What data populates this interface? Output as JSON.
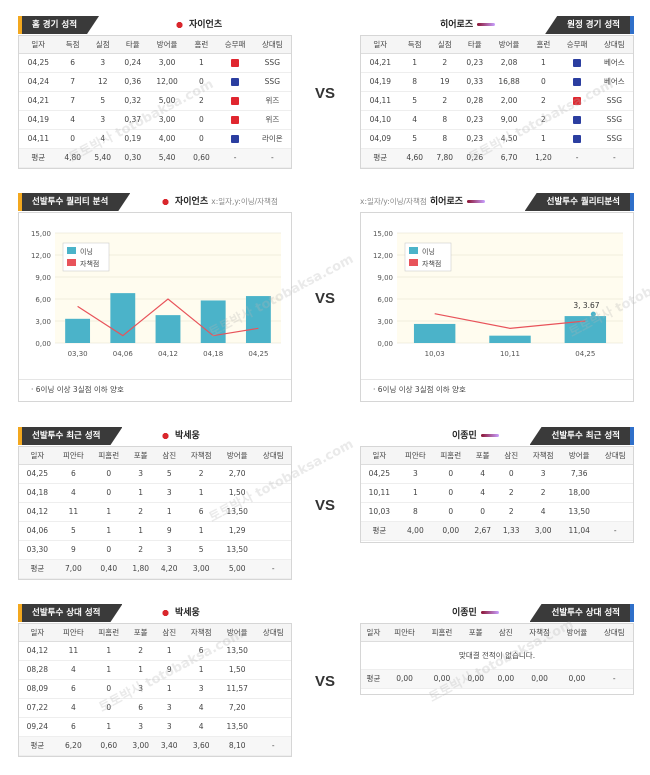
{
  "colors": {
    "bar": "#4bb3c9",
    "line": "#e8535a",
    "tab_bg": "#3a3a3a",
    "left_accent": "#f3a81f",
    "right_accent": "#2f6fc9"
  },
  "vs": "VS",
  "watermark": "토토박사 totobaksa.com",
  "section1": {
    "left": {
      "tab": "홈 경기 성적",
      "team": "자이언츠",
      "headers": [
        "일자",
        "득점",
        "실점",
        "타율",
        "방어율",
        "홈런",
        "승무패",
        "상대팀"
      ],
      "rows": [
        [
          "04,25",
          "6",
          "3",
          "0,24",
          "3,00",
          "1",
          "L",
          "SSG"
        ],
        [
          "04,24",
          "7",
          "12",
          "0,36",
          "12,00",
          "0",
          "W",
          "SSG"
        ],
        [
          "04,21",
          "7",
          "5",
          "0,32",
          "5,00",
          "2",
          "L",
          "위즈"
        ],
        [
          "04,19",
          "4",
          "3",
          "0,37",
          "3,00",
          "0",
          "L",
          "위즈"
        ],
        [
          "04,11",
          "0",
          "4",
          "0,19",
          "4,00",
          "0",
          "W",
          "라이온"
        ]
      ],
      "avg": [
        "평균",
        "4,80",
        "5,40",
        "0,30",
        "5,40",
        "0,60",
        "-",
        "-"
      ]
    },
    "right": {
      "tab": "원정 경기 성적",
      "team": "히어로즈",
      "headers": [
        "일자",
        "득점",
        "실점",
        "타율",
        "방어율",
        "홈런",
        "승무패",
        "상대팀"
      ],
      "rows": [
        [
          "04,21",
          "1",
          "2",
          "0,23",
          "2,08",
          "1",
          "W",
          "베어스"
        ],
        [
          "04,19",
          "8",
          "19",
          "0,33",
          "16,88",
          "0",
          "W",
          "베어스"
        ],
        [
          "04,11",
          "5",
          "2",
          "0,28",
          "2,00",
          "2",
          "L",
          "SSG"
        ],
        [
          "04,10",
          "4",
          "8",
          "0,23",
          "9,00",
          "2",
          "W",
          "SSG"
        ],
        [
          "04,09",
          "5",
          "8",
          "0,23",
          "4,50",
          "1",
          "W",
          "SSG"
        ]
      ],
      "avg": [
        "평균",
        "4,60",
        "7,80",
        "0,26",
        "6,70",
        "1,20",
        "-",
        "-"
      ]
    }
  },
  "section2": {
    "left": {
      "tab": "선발투수 퀄리티 분석",
      "team": "자이언츠",
      "hint": "x:일자,y:이닝/자책점",
      "note": "6이닝 이상 3실점 이하 양호"
    },
    "right": {
      "tab": "선발투수 퀄리티분석",
      "team": "히어로즈",
      "hint": "x:일자/y:이닝/자책점",
      "note": "6이닝 이상 3실점 이하 양호"
    }
  },
  "chart_data": [
    {
      "type": "bar",
      "categories": [
        "03,30",
        "04,06",
        "04,12",
        "04,18",
        "04,25"
      ],
      "series": [
        {
          "name": "이닝",
          "values": [
            3.3,
            6.8,
            3.8,
            5.8,
            6.4
          ]
        },
        {
          "name": "자책점",
          "values": [
            5,
            1,
            6,
            1,
            2
          ]
        }
      ],
      "yticks": [
        "0,00",
        "3,00",
        "6,00",
        "9,00",
        "12,00",
        "15,00"
      ],
      "ylim": [
        0,
        15
      ],
      "legend": "top-left"
    },
    {
      "type": "bar",
      "categories": [
        "10,03",
        "10,11",
        "04,25"
      ],
      "series": [
        {
          "name": "이닝",
          "values": [
            2.6,
            1,
            3.67
          ]
        },
        {
          "name": "자책점",
          "values": [
            4,
            2,
            3
          ]
        }
      ],
      "yticks": [
        "0,00",
        "3,00",
        "6,00",
        "9,00",
        "12,00",
        "15,00"
      ],
      "ylim": [
        0,
        15
      ],
      "legend": "top-left",
      "annotation": "3, 3.67"
    }
  ],
  "section3": {
    "left": {
      "tab": "선발투수 최근 성적",
      "team": "박세웅",
      "headers": [
        "일자",
        "피안타",
        "피홈런",
        "포볼",
        "삼진",
        "자책점",
        "방어율",
        "상대팀"
      ],
      "rows": [
        [
          "04,25",
          "6",
          "0",
          "3",
          "5",
          "2",
          "2,70",
          ""
        ],
        [
          "04,18",
          "4",
          "0",
          "1",
          "3",
          "1",
          "1,50",
          ""
        ],
        [
          "04,12",
          "11",
          "1",
          "2",
          "1",
          "6",
          "13,50",
          ""
        ],
        [
          "04,06",
          "5",
          "1",
          "1",
          "9",
          "1",
          "1,29",
          ""
        ],
        [
          "03,30",
          "9",
          "0",
          "2",
          "3",
          "5",
          "13,50",
          ""
        ]
      ],
      "avg": [
        "평균",
        "7,00",
        "0,40",
        "1,80",
        "4,20",
        "3,00",
        "5,00",
        "-"
      ]
    },
    "right": {
      "tab": "선발투수 최근 성적",
      "team": "이종민",
      "headers": [
        "일자",
        "피안타",
        "피홈런",
        "포볼",
        "삼진",
        "자책점",
        "방어율",
        "상대팀"
      ],
      "rows": [
        [
          "04,25",
          "3",
          "0",
          "4",
          "0",
          "3",
          "7,36",
          ""
        ],
        [
          "10,11",
          "1",
          "0",
          "4",
          "2",
          "2",
          "18,00",
          ""
        ],
        [
          "10,03",
          "8",
          "0",
          "0",
          "2",
          "4",
          "13,50",
          ""
        ]
      ],
      "avg": [
        "평균",
        "4,00",
        "0,00",
        "2,67",
        "1,33",
        "3,00",
        "11,04",
        "-"
      ]
    }
  },
  "section4": {
    "left": {
      "tab": "선발투수 상대 성적",
      "team": "박세웅",
      "headers": [
        "일자",
        "피안타",
        "피홈런",
        "포볼",
        "삼진",
        "자책점",
        "방어율",
        "상대팀"
      ],
      "rows": [
        [
          "04,12",
          "11",
          "1",
          "2",
          "1",
          "6",
          "13,50",
          ""
        ],
        [
          "08,28",
          "4",
          "1",
          "1",
          "9",
          "1",
          "1,50",
          ""
        ],
        [
          "08,09",
          "6",
          "0",
          "3",
          "1",
          "3",
          "11,57",
          ""
        ],
        [
          "07,22",
          "4",
          "0",
          "6",
          "3",
          "4",
          "7,20",
          ""
        ],
        [
          "09,24",
          "6",
          "1",
          "3",
          "3",
          "4",
          "13,50",
          ""
        ]
      ],
      "avg": [
        "평균",
        "6,20",
        "0,60",
        "3,00",
        "3,40",
        "3,60",
        "8,10",
        "-"
      ]
    },
    "right": {
      "tab": "선발투수 상대 성적",
      "team": "이종민",
      "headers": [
        "일자",
        "피안타",
        "피홈런",
        "포볼",
        "삼진",
        "자책점",
        "방어율",
        "상대팀"
      ],
      "empty": "맞대결 전적이 없습니다.",
      "avg": [
        "평균",
        "0,00",
        "0,00",
        "0,00",
        "0,00",
        "0,00",
        "0,00",
        "-"
      ]
    }
  }
}
